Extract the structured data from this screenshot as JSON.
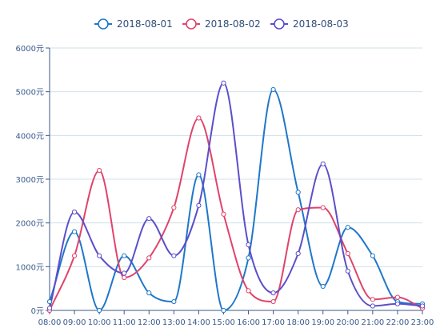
{
  "chart_data": {
    "type": "line",
    "smooth": true,
    "categories": [
      "08:00",
      "09:00",
      "10:00",
      "11:00",
      "12:00",
      "13:00",
      "14:00",
      "15:00",
      "16:00",
      "17:00",
      "18:00",
      "19:00",
      "20:00",
      "21:00",
      "22:00",
      "23:00"
    ],
    "ylim": [
      0,
      6000
    ],
    "yticks": [
      0,
      1000,
      2000,
      3000,
      4000,
      5000,
      6000
    ],
    "y_unit": "元",
    "grid": "horizontal",
    "legend_position": "top-center",
    "series": [
      {
        "name": "2018-08-01",
        "color": "#1f77c9",
        "values": [
          200,
          1800,
          0,
          1250,
          400,
          200,
          3100,
          0,
          1200,
          5050,
          2700,
          550,
          1900,
          1250,
          200,
          150
        ]
      },
      {
        "name": "2018-08-02",
        "color": "#e0436b",
        "values": [
          0,
          1250,
          3200,
          750,
          1200,
          2350,
          4400,
          2200,
          450,
          200,
          2300,
          2350,
          1300,
          250,
          300,
          50
        ]
      },
      {
        "name": "2018-08-03",
        "color": "#5b4fc9",
        "values": [
          50,
          2250,
          1250,
          850,
          2100,
          1250,
          2400,
          5200,
          1500,
          400,
          1300,
          3350,
          900,
          100,
          150,
          100
        ]
      }
    ]
  }
}
